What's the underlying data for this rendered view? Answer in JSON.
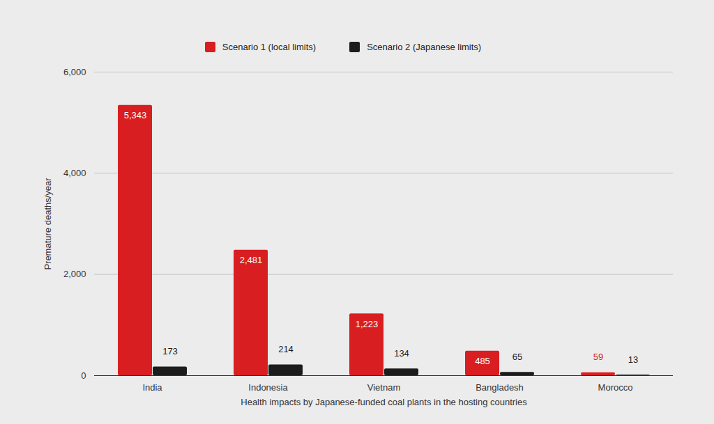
{
  "chart_data": {
    "type": "bar",
    "x_label": "Health impacts by Japanese-funded coal plants in the hosting countries",
    "y_label": "Premature deaths/year",
    "categories": [
      "India",
      "Indonesia",
      "Vietnam",
      "Bangladesh",
      "Morocco"
    ],
    "series": [
      {
        "name": "Scenario 1 (local limits)",
        "color": "#d81e20",
        "values": [
          5343,
          2481,
          1223,
          485,
          59
        ],
        "value_labels": [
          "5,343",
          "2,481",
          "1,223",
          "485",
          "59"
        ]
      },
      {
        "name": "Scenario 2 (Japanese limits)",
        "color": "#1c1c1c",
        "values": [
          173,
          214,
          134,
          65,
          13
        ]
      }
    ],
    "ylim": [
      0,
      6000
    ],
    "yticks": [
      0,
      {
        "value": 2000,
        "label": "2,000"
      },
      {
        "value": 4000,
        "label": "4,000"
      },
      {
        "value": 6000,
        "label": "6,000"
      }
    ],
    "grid": true,
    "legend": "top",
    "data_labels": true
  }
}
